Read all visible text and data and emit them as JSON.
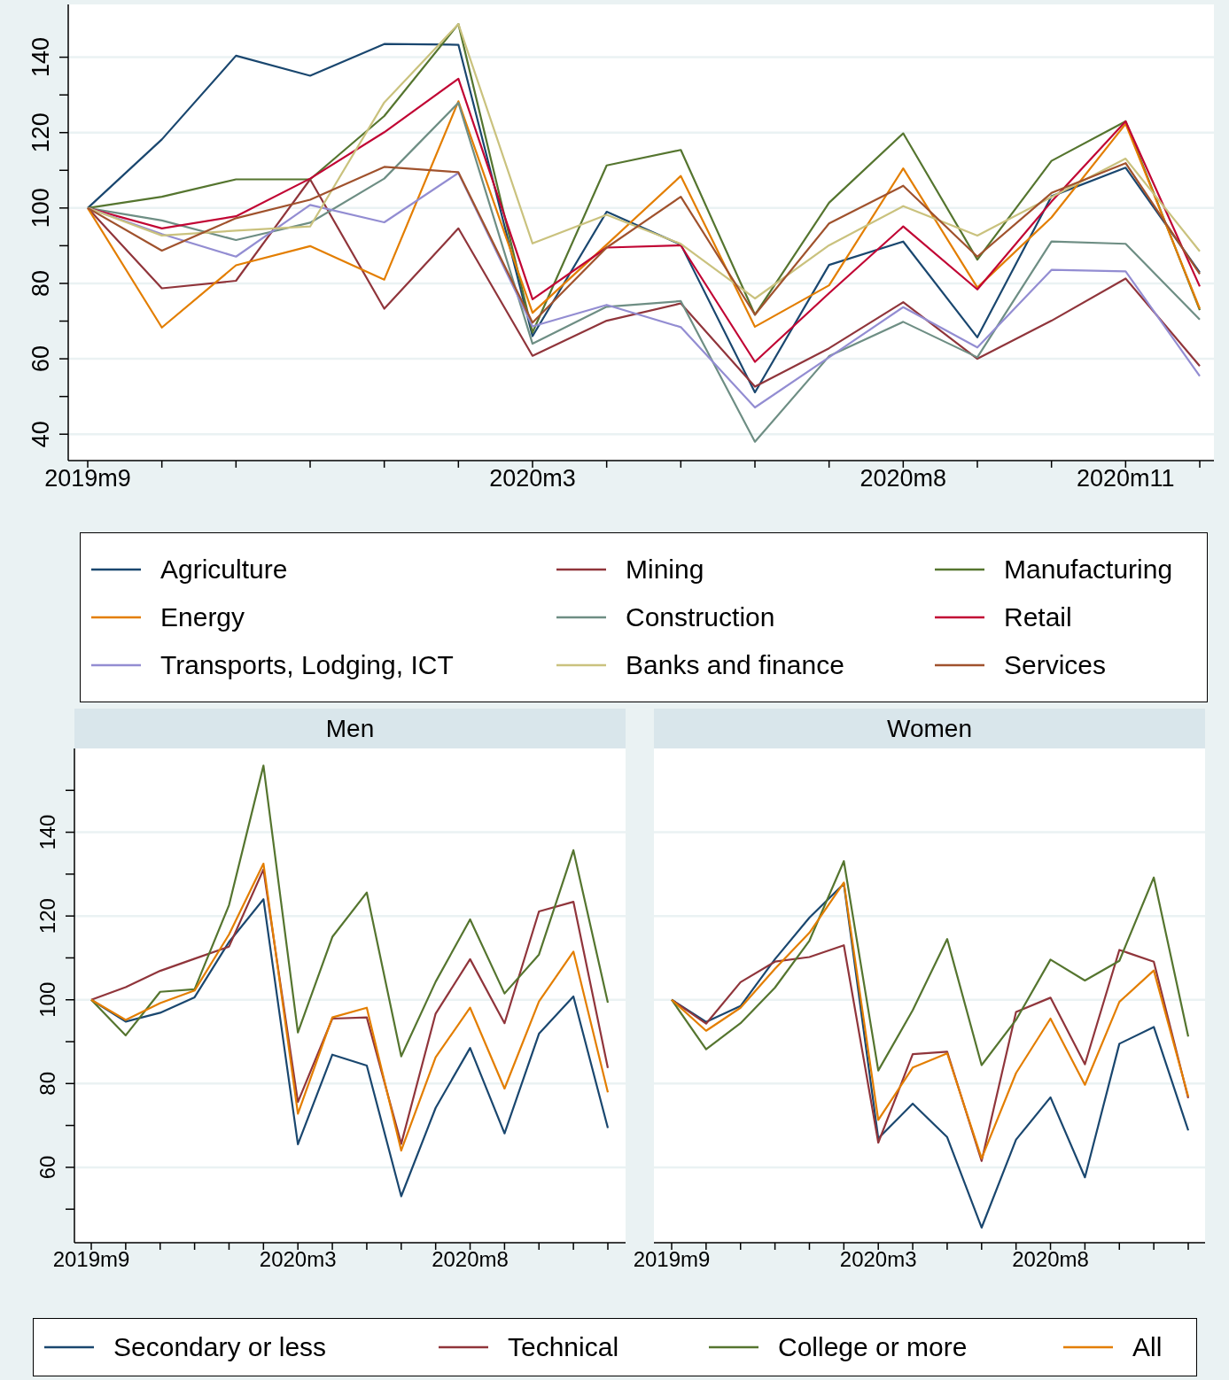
{
  "chart_data": [
    {
      "type": "line",
      "categories": [
        "2019m9",
        null,
        null,
        null,
        null,
        null,
        "2020m3",
        null,
        null,
        null,
        null,
        "2020m8",
        null,
        null,
        "2020m11",
        null
      ],
      "ylim": [
        33,
        154
      ],
      "yticks": [
        40,
        {
          "value": 50,
          "label": null
        },
        60,
        {
          "value": 70,
          "label": null
        },
        80,
        {
          "value": 90,
          "label": null
        },
        100,
        {
          "value": 110,
          "label": null
        },
        120,
        {
          "value": 130,
          "label": null
        },
        140
      ],
      "grid": "y",
      "legend": "bottom",
      "marker": "none",
      "line_style": "solid",
      "series": [
        {
          "name": "Agriculture",
          "color": "#1a476f",
          "values": [
            100,
            118.2,
            140.4,
            135.1,
            143.5,
            143.3,
            66,
            99,
            90.3,
            51.1,
            84.9,
            91.1,
            65.7,
            103.1,
            110.7,
            82.9
          ]
        },
        {
          "name": "Mining",
          "color": "#90353b",
          "values": [
            100,
            78.7,
            80.7,
            107.6,
            73.3,
            94.6,
            60.8,
            70.1,
            74.7,
            52.6,
            62.8,
            75,
            60,
            70.1,
            81.3,
            58.1
          ]
        },
        {
          "name": "Manufacturing",
          "color": "#55752f",
          "values": [
            100,
            103,
            107.6,
            107.6,
            124.4,
            148.8,
            67,
            111.3,
            115.4,
            71.7,
            101.4,
            119.8,
            86.3,
            112.5,
            123,
            72.9
          ]
        },
        {
          "name": "Energy",
          "color": "#e37e00",
          "values": [
            100,
            68.3,
            84.8,
            89.9,
            81,
            128.3,
            72.2,
            90.3,
            108.5,
            68.5,
            79.5,
            110.5,
            78.9,
            97.5,
            122.3,
            73.3
          ]
        },
        {
          "name": "Construction",
          "color": "#6e8e84",
          "values": [
            100,
            96.7,
            91.5,
            96.1,
            107.8,
            127.9,
            64,
            73.8,
            75.3,
            38,
            60.7,
            69.8,
            60.4,
            91.1,
            90.5,
            70.4
          ]
        },
        {
          "name": "Retail",
          "color": "#c10534",
          "values": [
            100,
            94.6,
            97.8,
            107.8,
            120.1,
            134.3,
            75.8,
            89.5,
            90.1,
            59.2,
            77.4,
            95.1,
            78.4,
            101.7,
            123,
            79.2
          ]
        },
        {
          "name": "Transports, Lodging, ICT",
          "color": "#938dd2",
          "values": [
            100,
            93.1,
            87.1,
            100.8,
            96.2,
            109.3,
            68.6,
            74.3,
            68.4,
            47.1,
            60.4,
            73.7,
            63,
            83.6,
            83.2,
            55.4
          ]
        },
        {
          "name": "Banks and finance",
          "color": "#cac27e",
          "values": [
            100,
            92.7,
            94,
            95.1,
            128,
            148.8,
            90.6,
            98.2,
            90.5,
            76,
            90.1,
            100.5,
            92.7,
            102.9,
            113.1,
            88.5
          ]
        },
        {
          "name": "Services",
          "color": "#a0522d",
          "values": [
            100,
            88.7,
            97.3,
            102.2,
            110.9,
            109.5,
            69.6,
            89.5,
            103,
            71.7,
            95.9,
            105.9,
            87.1,
            104,
            111.9,
            82.5
          ]
        }
      ]
    },
    {
      "type": "line",
      "title": "Men",
      "categories": [
        "2019m9",
        null,
        null,
        null,
        null,
        null,
        "2020m3",
        null,
        null,
        null,
        null,
        "2020m8",
        null,
        null,
        null,
        null
      ],
      "ylim": [
        42,
        160
      ],
      "yticks": [
        {
          "value": 50,
          "label": null
        },
        60,
        {
          "value": 70,
          "label": null
        },
        80,
        {
          "value": 90,
          "label": null
        },
        100,
        {
          "value": 110,
          "label": null
        },
        120,
        {
          "value": 130,
          "label": null
        },
        140,
        {
          "value": 150,
          "label": null
        }
      ],
      "grid": "y",
      "legend": "bottom",
      "marker": "none",
      "line_style": "solid",
      "series": [
        {
          "name": "Secondary or less",
          "color": "#1a476f",
          "values": [
            100,
            94.8,
            96.9,
            100.6,
            113.8,
            124,
            65.5,
            86.9,
            84.3,
            53.1,
            74.2,
            88.5,
            68.1,
            91.9,
            100.8,
            69.4
          ]
        },
        {
          "name": "Technical",
          "color": "#90353b",
          "values": [
            100,
            103,
            106.9,
            109.8,
            112.7,
            131.1,
            75.6,
            95.5,
            95.8,
            65.6,
            96.7,
            109.7,
            94.4,
            121.1,
            123.4,
            83.7
          ]
        },
        {
          "name": "College or more",
          "color": "#55752f",
          "values": [
            100,
            91.5,
            101.9,
            102.5,
            122.6,
            155.9,
            92.2,
            115,
            125.6,
            86.5,
            104.3,
            119.2,
            101.5,
            110.8,
            135.7,
            99.3
          ]
        },
        {
          "name": "All",
          "color": "#e37e00",
          "values": [
            100,
            95.2,
            99.2,
            102.2,
            115.6,
            132.5,
            72.8,
            95.8,
            98.1,
            64,
            86.3,
            98.1,
            78.8,
            99.6,
            111.5,
            77.9
          ]
        }
      ]
    },
    {
      "type": "line",
      "title": "Women",
      "categories": [
        "2019m9",
        null,
        null,
        null,
        null,
        null,
        "2020m3",
        null,
        null,
        null,
        null,
        "2020m8",
        null,
        null,
        null,
        null
      ],
      "ylim": [
        42,
        160
      ],
      "yticks": [
        60,
        80,
        100,
        120,
        140
      ],
      "grid": "y",
      "tick_labels": "x",
      "marker": "none",
      "line_style": "solid",
      "series": [
        {
          "color": "#1a476f",
          "values": [
            100,
            94.7,
            98.5,
            109.7,
            119.6,
            127.7,
            66.9,
            75.2,
            67.2,
            45.6,
            66.6,
            76.7,
            57.6,
            89.5,
            93.5,
            68.8
          ]
        },
        {
          "color": "#90353b",
          "values": [
            100,
            94.3,
            104.2,
            109.1,
            110.2,
            113,
            65.9,
            87,
            87.6,
            61.5,
            97.1,
            100.5,
            84.6,
            111.9,
            109.1,
            76.5
          ]
        },
        {
          "color": "#55752f",
          "values": [
            100,
            88.2,
            94.4,
            102.9,
            114.1,
            133.1,
            83.1,
            97.5,
            114.5,
            84.4,
            95.2,
            109.6,
            104.6,
            109.3,
            129.2,
            91.2
          ]
        },
        {
          "color": "#e37e00",
          "values": [
            100,
            92.6,
            98.1,
            107.4,
            116,
            128,
            71.3,
            83.8,
            87.2,
            62.1,
            82.5,
            95.5,
            79.7,
            99.5,
            107,
            76.9
          ]
        }
      ]
    }
  ]
}
